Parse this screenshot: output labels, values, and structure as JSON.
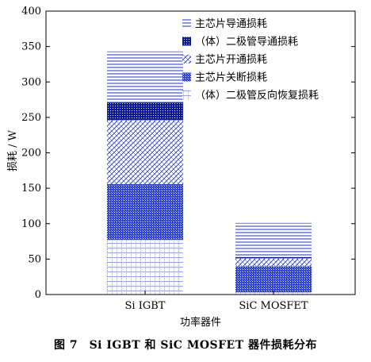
{
  "chart_data": {
    "type": "bar",
    "stacked": true,
    "categories": [
      "Si IGBT",
      "SiC MOSFET"
    ],
    "series": [
      {
        "name": "（体）二极管反向恢复损耗",
        "values": [
          77,
          3
        ],
        "pattern": "grid",
        "color": "#1a2fd0"
      },
      {
        "name": "主芯片关断损耗",
        "values": [
          79,
          37
        ],
        "pattern": "dense-dots",
        "color": "#1a2fd0"
      },
      {
        "name": "主芯片开通损耗",
        "values": [
          90,
          11
        ],
        "pattern": "diag-cross",
        "color": "#1a2fd0"
      },
      {
        "name": "（体）二极管导通损耗",
        "values": [
          25,
          2
        ],
        "pattern": "solid-dots",
        "color": "#0a1a9a"
      },
      {
        "name": "主芯片导通损耗",
        "values": [
          72,
          48
        ],
        "pattern": "h-lines",
        "color": "#1a2fd0"
      }
    ],
    "legend_order": [
      "主芯片导通损耗",
      "（体）二极管导通损耗",
      "主芯片开通损耗",
      "主芯片关断损耗",
      "（体）二极管反向恢复损耗"
    ],
    "ylim": [
      0,
      400
    ],
    "yticks": [
      0,
      50,
      100,
      150,
      200,
      250,
      300,
      350,
      400
    ],
    "ylabel": "损耗 / W",
    "xlabel": "功率器件",
    "legend_position": "top-right",
    "grid": false
  },
  "caption": "图 7　Si IGBT 和 SiC MOSFET 器件损耗分布"
}
